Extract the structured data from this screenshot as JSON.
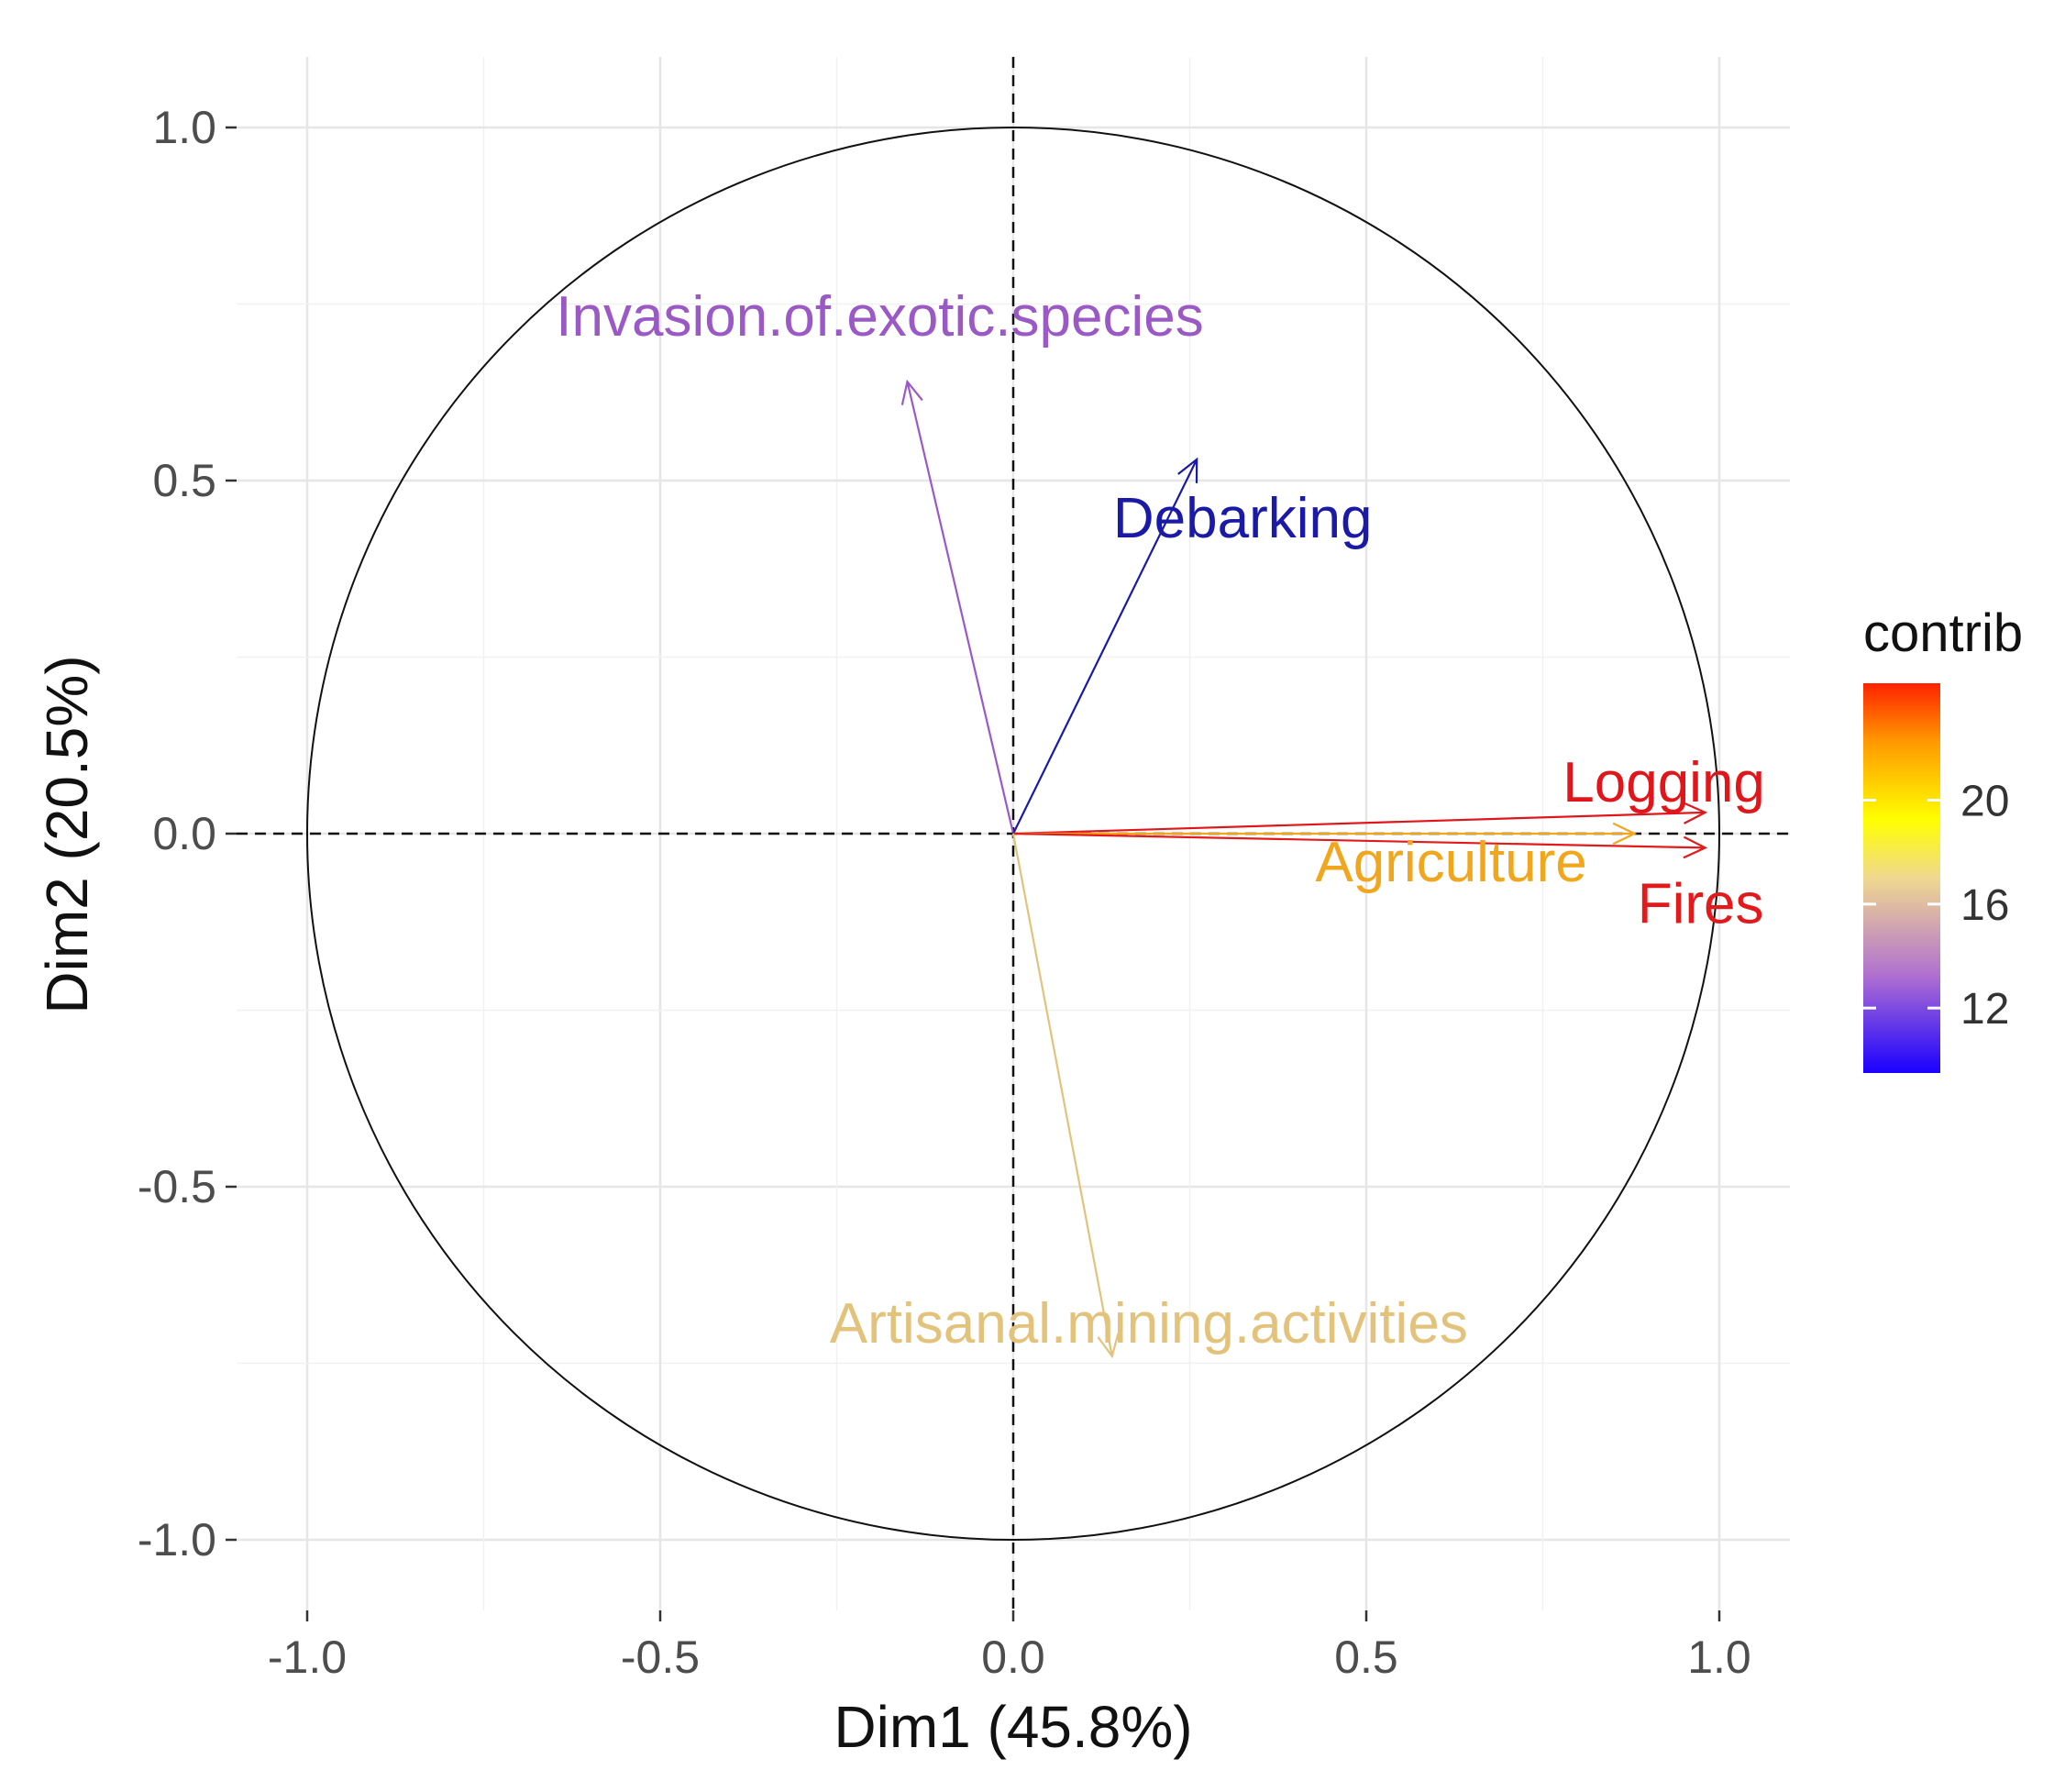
{
  "chart_data": {
    "type": "pca-variable-correlation-circle",
    "xlabel": "Dim1 (45.8%)",
    "ylabel": "Dim2 (20.5%)",
    "xlim": [
      -1.1,
      1.1
    ],
    "ylim": [
      -1.1,
      1.1
    ],
    "x_ticks": [
      -1.0,
      -0.5,
      0.0,
      0.5,
      1.0
    ],
    "y_ticks": [
      -1.0,
      -0.5,
      0.0,
      0.5,
      1.0
    ],
    "x_tick_labels": [
      "-1.0",
      "-0.5",
      "0.0",
      "0.5",
      "1.0"
    ],
    "y_tick_labels": [
      "1.0",
      "0.5",
      "0.0",
      "-0.5",
      "-1.0"
    ],
    "grid": true,
    "unit_circle": true,
    "reference_lines": [
      0,
      0
    ],
    "variables": [
      {
        "name": "Invasion.of.exotic.species",
        "x": -0.15,
        "y": 0.64,
        "contrib": 14.2,
        "color": "#9b59c6"
      },
      {
        "name": "Debarking",
        "x": 0.26,
        "y": 0.53,
        "contrib": 9.6,
        "color": "#1a1aa6"
      },
      {
        "name": "Logging",
        "x": 0.98,
        "y": 0.03,
        "contrib": 24.0,
        "color": "#e0161a"
      },
      {
        "name": "Agriculture",
        "x": 0.88,
        "y": 0.0,
        "contrib": 19.2,
        "color": "#f0a71e"
      },
      {
        "name": "Fires",
        "x": 0.98,
        "y": -0.02,
        "contrib": 23.8,
        "color": "#e31a1c"
      },
      {
        "name": "Artisanal.mining.activities",
        "x": 0.14,
        "y": -0.74,
        "contrib": 14.8,
        "color": "#e3c27c"
      }
    ],
    "legend": {
      "title": "contrib",
      "position": "right",
      "ticks": [
        12,
        16,
        20
      ],
      "tick_labels": [
        "12",
        "16",
        "20"
      ],
      "range": [
        9.5,
        24.5
      ],
      "gradient": [
        "#1a00ff",
        "#b070d0",
        "#f0d890",
        "#ffff00",
        "#ff9900",
        "#ff2200"
      ]
    }
  }
}
